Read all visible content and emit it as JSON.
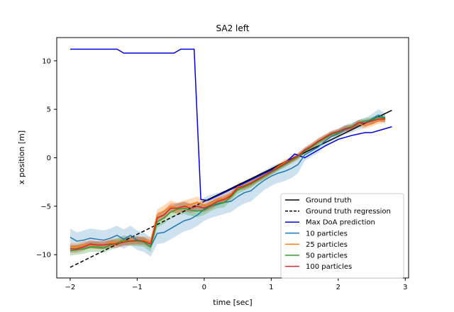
{
  "chart_data": {
    "type": "line",
    "title": "SA2 left",
    "xlabel": "time [sec]",
    "ylabel": "x position [m]",
    "xlim": [
      -2.2,
      3.05
    ],
    "ylim": [
      -12.4,
      12.4
    ],
    "xticks": [
      -2,
      -1,
      0,
      1,
      2,
      3
    ],
    "yticks": [
      -10,
      -5,
      0,
      5,
      10
    ],
    "grid": false,
    "legend_position": "lower-right",
    "series": [
      {
        "name": "Ground truth",
        "color": "#000000",
        "style": "solid",
        "x": [
          0.0,
          2.8
        ],
        "y": [
          -4.5,
          4.9
        ]
      },
      {
        "name": "Ground truth regression",
        "color": "#000000",
        "style": "dashed",
        "x": [
          -2.0,
          0.0
        ],
        "y": [
          -11.3,
          -4.5
        ]
      },
      {
        "name": "Max DoA prediction",
        "color": "#0000dd",
        "style": "solid",
        "x": [
          -2.0,
          -1.3,
          -1.2,
          -0.45,
          -0.35,
          -0.15,
          -0.05,
          0.05,
          0.3,
          0.6,
          0.9,
          1.2,
          1.35,
          1.5,
          1.8,
          2.0,
          2.2,
          2.4,
          2.5,
          2.6,
          2.8
        ],
        "y": [
          11.2,
          11.2,
          10.8,
          10.8,
          11.2,
          11.2,
          -4.3,
          -4.4,
          -3.6,
          -2.6,
          -1.6,
          -0.6,
          0.4,
          0.0,
          1.2,
          1.9,
          2.3,
          2.6,
          2.6,
          2.8,
          3.2
        ]
      },
      {
        "name": "10 particles",
        "color": "#1f77b4",
        "style": "solid",
        "x": [
          -2.0,
          -1.9,
          -1.8,
          -1.7,
          -1.6,
          -1.5,
          -1.4,
          -1.3,
          -1.2,
          -1.1,
          -1.0,
          -0.9,
          -0.8,
          -0.7,
          -0.6,
          -0.5,
          -0.4,
          -0.3,
          -0.2,
          -0.1,
          0.0,
          0.1,
          0.2,
          0.3,
          0.4,
          0.5,
          0.6,
          0.7,
          0.8,
          0.9,
          1.0,
          1.1,
          1.2,
          1.3,
          1.4,
          1.5,
          1.6,
          1.7,
          1.8,
          1.9,
          2.0,
          2.1,
          2.2,
          2.3,
          2.4,
          2.5,
          2.6,
          2.7
        ],
        "y": [
          -8.2,
          -8.6,
          -8.5,
          -8.3,
          -8.4,
          -8.5,
          -8.3,
          -8.0,
          -8.4,
          -8.0,
          -8.5,
          -8.7,
          -9.2,
          -7.8,
          -7.7,
          -7.3,
          -6.9,
          -6.5,
          -6.3,
          -5.9,
          -5.3,
          -5.0,
          -4.8,
          -4.6,
          -4.5,
          -4.0,
          -3.6,
          -3.4,
          -2.8,
          -2.3,
          -1.9,
          -1.6,
          -1.4,
          -1.1,
          -0.7,
          0.3,
          0.7,
          1.1,
          1.7,
          2.2,
          2.5,
          2.9,
          3.1,
          3.4,
          3.6,
          4.0,
          4.4,
          4.1
        ],
        "band_width": [
          0.9,
          0.9,
          1.0,
          1.0,
          1.0,
          1.0,
          1.0,
          1.0,
          1.0,
          1.0,
          1.0,
          1.0,
          1.0,
          1.1,
          1.1,
          1.1,
          1.1,
          1.1,
          1.1,
          1.1,
          1.2,
          1.2,
          1.2,
          1.2,
          1.1,
          1.1,
          1.1,
          1.1,
          1.1,
          1.0,
          1.0,
          1.0,
          1.0,
          1.0,
          0.9,
          0.6,
          0.6,
          0.6,
          0.5,
          0.5,
          0.5,
          0.5,
          0.5,
          0.5,
          0.5,
          0.5,
          0.6,
          0.5
        ]
      },
      {
        "name": "25 particles",
        "color": "#ff7f0e",
        "style": "solid",
        "x": [
          -2.0,
          -1.9,
          -1.8,
          -1.7,
          -1.6,
          -1.5,
          -1.4,
          -1.3,
          -1.2,
          -1.1,
          -1.0,
          -0.9,
          -0.8,
          -0.7,
          -0.6,
          -0.5,
          -0.4,
          -0.3,
          -0.2,
          -0.1,
          0.0,
          0.1,
          0.2,
          0.3,
          0.4,
          0.5,
          0.6,
          0.7,
          0.8,
          0.9,
          1.0,
          1.1,
          1.2,
          1.3,
          1.4,
          1.5,
          1.6,
          1.7,
          1.8,
          1.9,
          2.0,
          2.1,
          2.2,
          2.3,
          2.4,
          2.5,
          2.6,
          2.7
        ],
        "y": [
          -9.2,
          -9.2,
          -9.0,
          -9.0,
          -9.0,
          -9.0,
          -8.8,
          -8.7,
          -8.6,
          -8.5,
          -8.6,
          -8.5,
          -8.7,
          -5.9,
          -5.5,
          -5.0,
          -5.2,
          -5.0,
          -4.8,
          -4.6,
          -4.9,
          -4.7,
          -4.3,
          -4.2,
          -3.8,
          -3.0,
          -2.9,
          -2.6,
          -2.2,
          -1.8,
          -1.4,
          -0.9,
          -0.5,
          -0.2,
          0.2,
          0.7,
          1.2,
          1.7,
          2.1,
          2.4,
          2.6,
          3.0,
          3.1,
          3.5,
          3.3,
          3.5,
          3.8,
          3.9
        ],
        "band_width": [
          0.4,
          0.4,
          0.4,
          0.4,
          0.4,
          0.4,
          0.4,
          0.4,
          0.4,
          0.4,
          0.4,
          0.4,
          0.5,
          0.6,
          0.6,
          0.6,
          0.6,
          0.6,
          0.6,
          0.6,
          0.5,
          0.5,
          0.5,
          0.5,
          0.4,
          0.4,
          0.4,
          0.4,
          0.3,
          0.3,
          0.3,
          0.3,
          0.3,
          0.3,
          0.3,
          0.3,
          0.3,
          0.3,
          0.3,
          0.3,
          0.3,
          0.3,
          0.3,
          0.3,
          0.3,
          0.3,
          0.3,
          0.3
        ]
      },
      {
        "name": "50 particles",
        "color": "#2ca02c",
        "style": "solid",
        "x": [
          -2.0,
          -1.9,
          -1.8,
          -1.7,
          -1.6,
          -1.5,
          -1.4,
          -1.3,
          -1.2,
          -1.1,
          -1.0,
          -0.9,
          -0.8,
          -0.7,
          -0.6,
          -0.5,
          -0.4,
          -0.3,
          -0.2,
          -0.1,
          0.0,
          0.1,
          0.2,
          0.3,
          0.4,
          0.5,
          0.6,
          0.7,
          0.8,
          0.9,
          1.0,
          1.1,
          1.2,
          1.3,
          1.4,
          1.5,
          1.6,
          1.7,
          1.8,
          1.9,
          2.0,
          2.1,
          2.2,
          2.3,
          2.4,
          2.5,
          2.6,
          2.7
        ],
        "y": [
          -9.6,
          -9.5,
          -9.4,
          -9.2,
          -9.2,
          -9.3,
          -9.0,
          -8.8,
          -8.5,
          -8.6,
          -8.6,
          -8.7,
          -9.2,
          -6.6,
          -6.2,
          -5.6,
          -5.3,
          -5.2,
          -5.4,
          -5.5,
          -5.4,
          -5.0,
          -4.7,
          -4.6,
          -4.0,
          -3.3,
          -3.0,
          -2.7,
          -2.3,
          -1.9,
          -1.5,
          -1.1,
          -0.7,
          -0.3,
          0.1,
          0.7,
          1.1,
          1.6,
          2.0,
          2.4,
          2.6,
          3.0,
          3.2,
          3.6,
          3.8,
          3.9,
          4.2,
          4.1
        ],
        "band_width": [
          0.5,
          0.5,
          0.5,
          0.5,
          0.5,
          0.5,
          0.5,
          0.5,
          0.5,
          0.5,
          0.5,
          0.5,
          0.5,
          0.6,
          0.6,
          0.6,
          0.6,
          0.6,
          0.6,
          0.6,
          0.5,
          0.5,
          0.5,
          0.5,
          0.4,
          0.4,
          0.4,
          0.4,
          0.3,
          0.3,
          0.3,
          0.3,
          0.3,
          0.3,
          0.3,
          0.3,
          0.3,
          0.3,
          0.3,
          0.3,
          0.3,
          0.3,
          0.3,
          0.3,
          0.3,
          0.3,
          0.3,
          0.3
        ]
      },
      {
        "name": "100 particles",
        "color": "#d62728",
        "style": "solid",
        "x": [
          -2.0,
          -1.9,
          -1.8,
          -1.7,
          -1.6,
          -1.5,
          -1.4,
          -1.3,
          -1.2,
          -1.1,
          -1.0,
          -0.9,
          -0.8,
          -0.7,
          -0.6,
          -0.5,
          -0.4,
          -0.3,
          -0.2,
          -0.1,
          0.0,
          0.1,
          0.2,
          0.3,
          0.4,
          0.5,
          0.6,
          0.7,
          0.8,
          0.9,
          1.0,
          1.1,
          1.2,
          1.3,
          1.4,
          1.5,
          1.6,
          1.7,
          1.8,
          1.9,
          2.0,
          2.1,
          2.2,
          2.3,
          2.4,
          2.5,
          2.6,
          2.7
        ],
        "y": [
          -9.4,
          -9.4,
          -9.2,
          -8.9,
          -9.0,
          -9.0,
          -8.9,
          -8.9,
          -8.7,
          -8.6,
          -8.5,
          -8.6,
          -8.9,
          -6.2,
          -5.9,
          -5.2,
          -5.2,
          -5.0,
          -5.2,
          -5.0,
          -5.2,
          -4.9,
          -4.5,
          -4.3,
          -3.9,
          -3.1,
          -2.9,
          -2.6,
          -2.2,
          -1.8,
          -1.4,
          -1.0,
          -0.6,
          -0.2,
          0.2,
          0.8,
          1.2,
          1.7,
          2.1,
          2.5,
          2.7,
          3.0,
          3.1,
          3.6,
          3.6,
          3.8,
          4.0,
          4.0
        ],
        "band_width": [
          0.4,
          0.4,
          0.4,
          0.4,
          0.4,
          0.4,
          0.4,
          0.4,
          0.4,
          0.4,
          0.4,
          0.4,
          0.4,
          0.5,
          0.5,
          0.5,
          0.5,
          0.5,
          0.5,
          0.5,
          0.4,
          0.4,
          0.4,
          0.4,
          0.3,
          0.3,
          0.3,
          0.3,
          0.3,
          0.3,
          0.3,
          0.3,
          0.3,
          0.3,
          0.3,
          0.3,
          0.3,
          0.3,
          0.3,
          0.3,
          0.3,
          0.3,
          0.3,
          0.3,
          0.3,
          0.3,
          0.3,
          0.3
        ]
      }
    ]
  }
}
